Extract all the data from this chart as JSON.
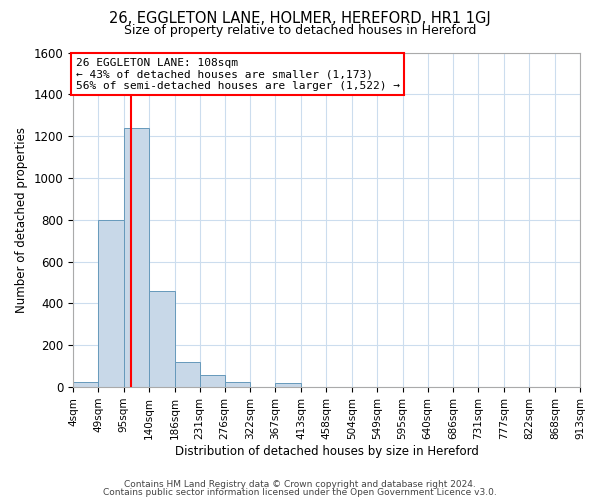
{
  "title": "26, EGGLETON LANE, HOLMER, HEREFORD, HR1 1GJ",
  "subtitle": "Size of property relative to detached houses in Hereford",
  "xlabel": "Distribution of detached houses by size in Hereford",
  "ylabel": "Number of detached properties",
  "bar_color": "#c8d8e8",
  "bar_edge_color": "#6699bb",
  "bin_edges": [
    4,
    49,
    95,
    140,
    186,
    231,
    276,
    322,
    367,
    413,
    458,
    504,
    549,
    595,
    640,
    686,
    731,
    777,
    822,
    868,
    913
  ],
  "bin_labels": [
    "4sqm",
    "49sqm",
    "95sqm",
    "140sqm",
    "186sqm",
    "231sqm",
    "276sqm",
    "322sqm",
    "367sqm",
    "413sqm",
    "458sqm",
    "504sqm",
    "549sqm",
    "595sqm",
    "640sqm",
    "686sqm",
    "731sqm",
    "777sqm",
    "822sqm",
    "868sqm",
    "913sqm"
  ],
  "bar_heights": [
    25,
    800,
    1240,
    460,
    120,
    60,
    25,
    0,
    20,
    0,
    0,
    0,
    0,
    0,
    0,
    0,
    0,
    0,
    0,
    0
  ],
  "ylim": [
    0,
    1600
  ],
  "yticks": [
    0,
    200,
    400,
    600,
    800,
    1000,
    1200,
    1400,
    1600
  ],
  "red_line_x": 108,
  "annotation_title": "26 EGGLETON LANE: 108sqm",
  "annotation_line1": "← 43% of detached houses are smaller (1,173)",
  "annotation_line2": "56% of semi-detached houses are larger (1,522) →",
  "footer_line1": "Contains HM Land Registry data © Crown copyright and database right 2024.",
  "footer_line2": "Contains public sector information licensed under the Open Government Licence v3.0.",
  "background_color": "#ffffff",
  "grid_color": "#ccddee"
}
